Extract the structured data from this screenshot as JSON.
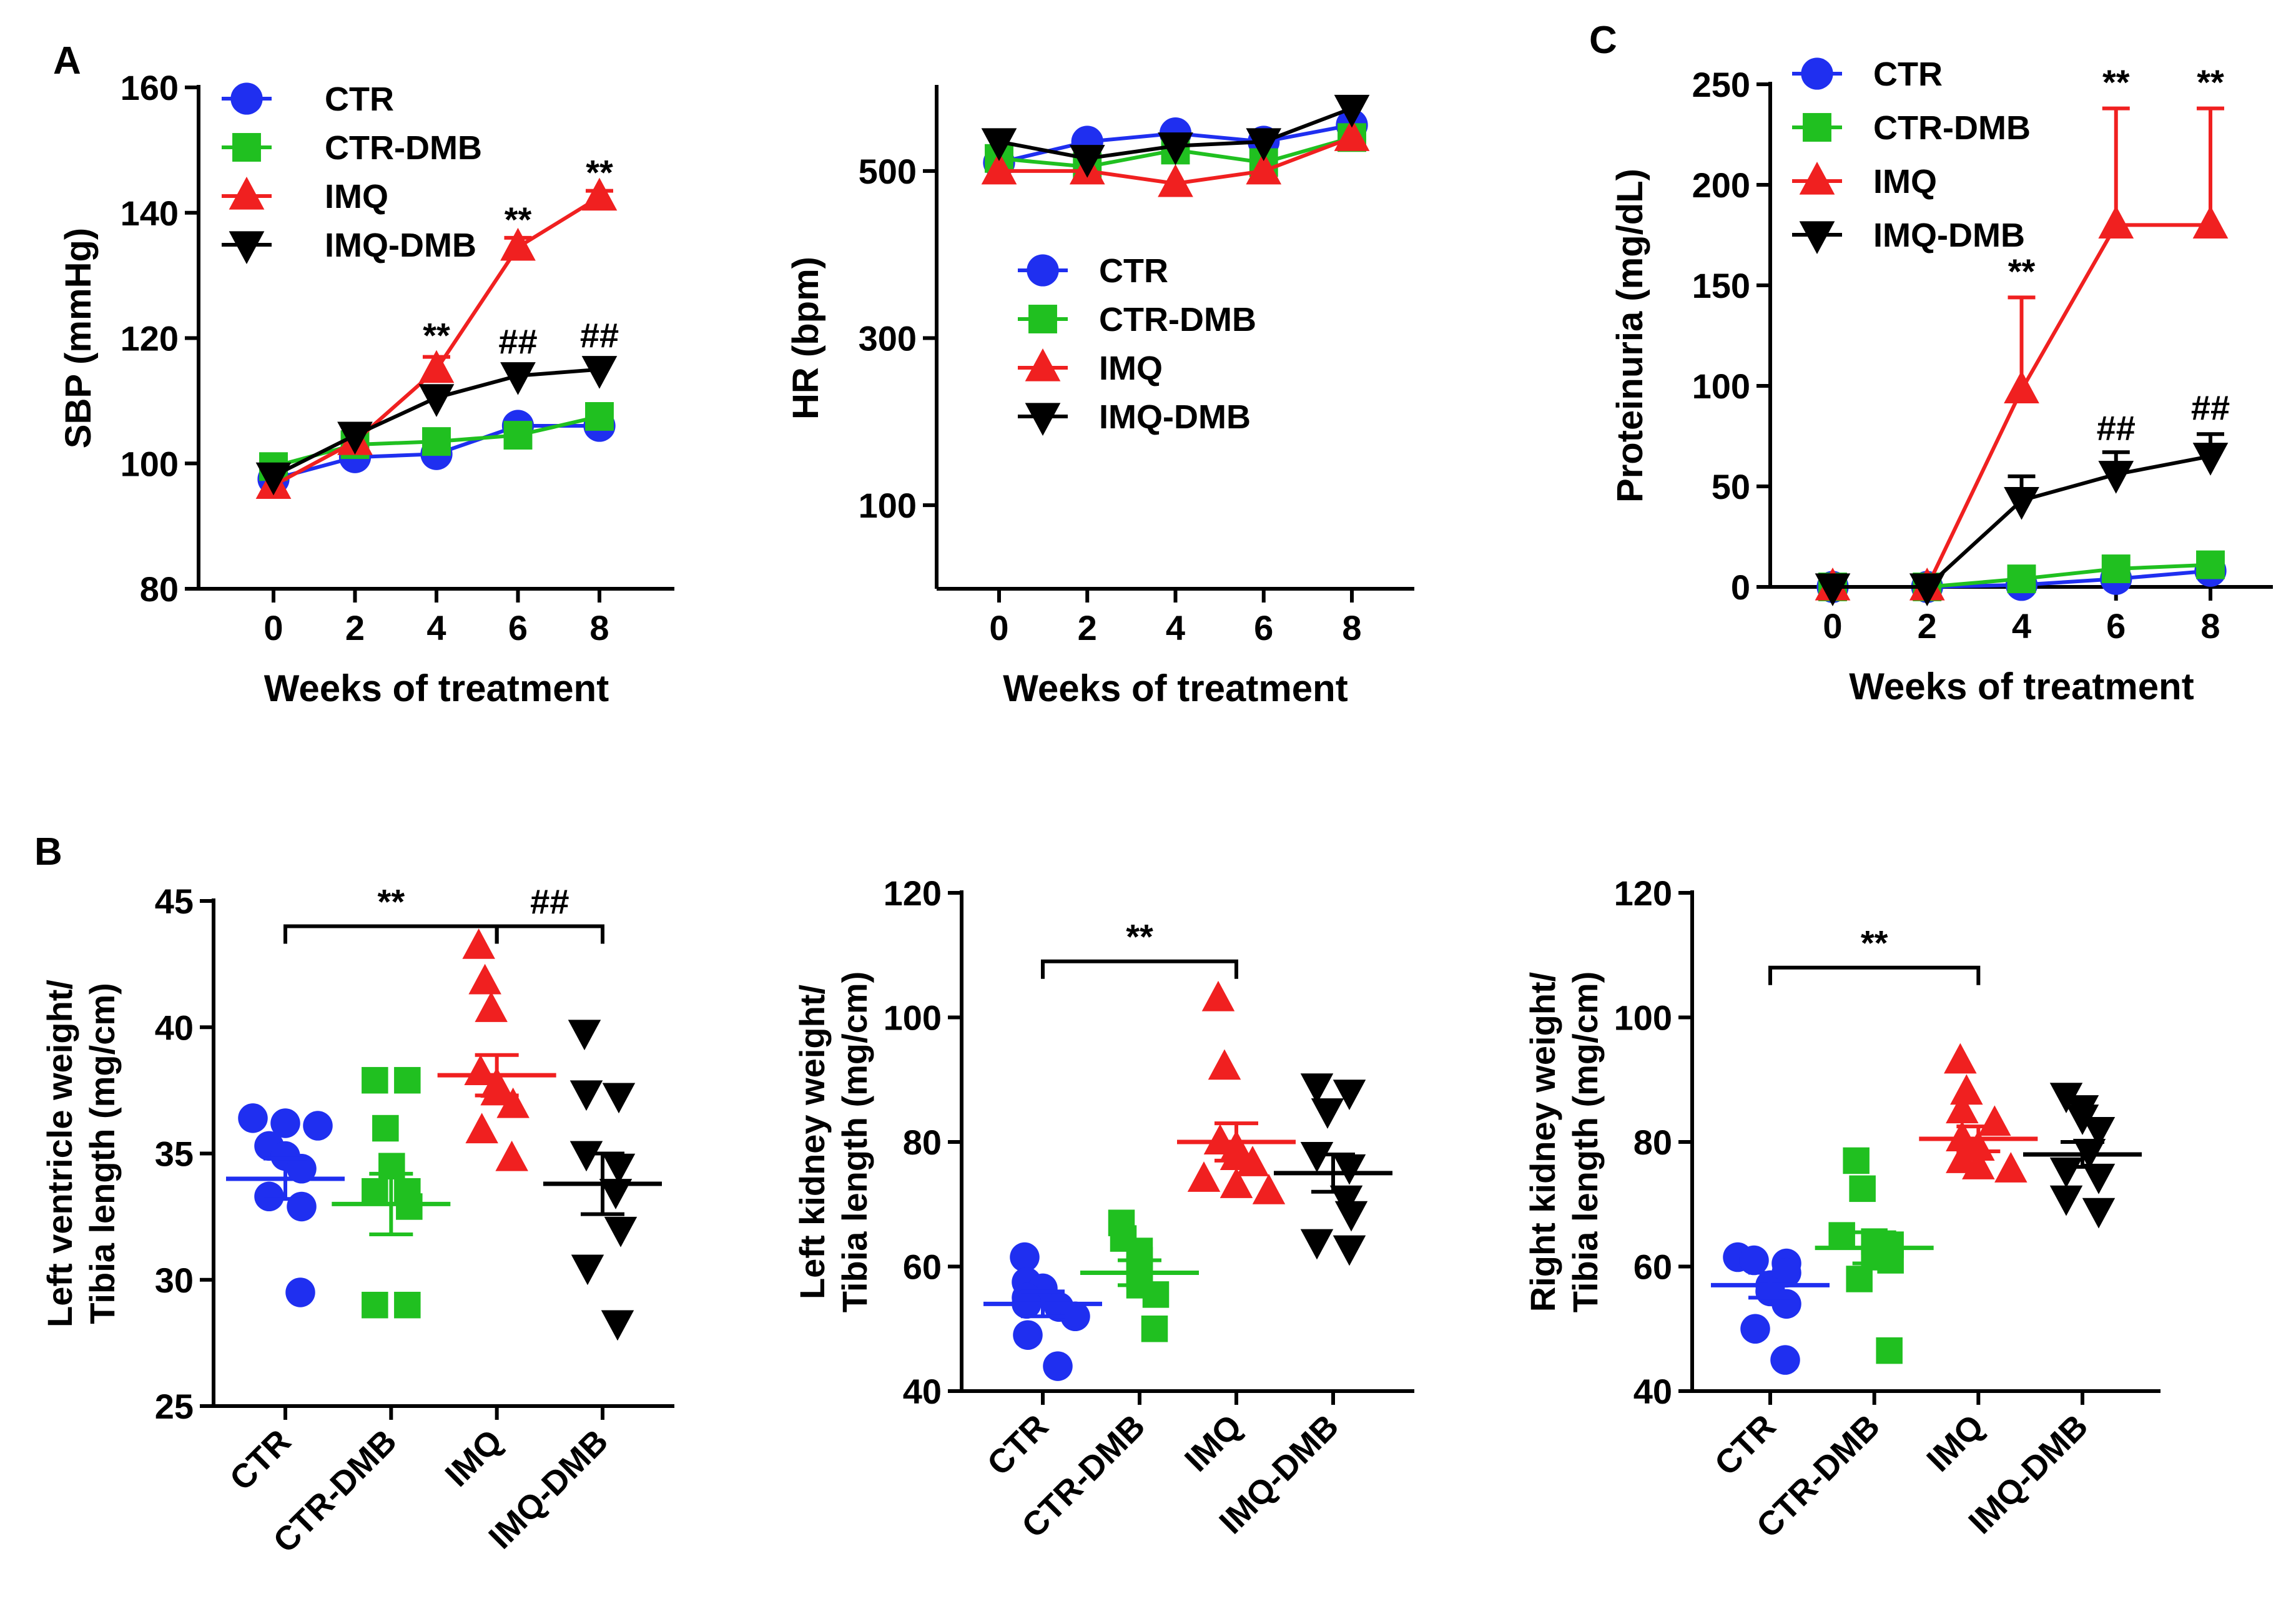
{
  "colors": {
    "CTR": "#1f2ff0",
    "CTR-DMB": "#20c020",
    "IMQ": "#f02020",
    "IMQ-DMB": "#000000"
  },
  "panel_labels": [
    "A",
    "B",
    "C"
  ],
  "chart_data": [
    {
      "id": "sbp",
      "type": "line",
      "title": "",
      "xlabel": "Weeks of treatment",
      "ylabel": "SBP (mmHg)",
      "x": [
        0,
        2,
        4,
        6,
        8
      ],
      "xticks": [
        "0",
        "2",
        "4",
        "6",
        "8"
      ],
      "ylim": [
        80,
        160
      ],
      "yticks": [
        80,
        100,
        120,
        140,
        160
      ],
      "legend": "top-left",
      "series": [
        {
          "name": "CTR",
          "marker": "circle",
          "values": [
            97.5,
            101,
            101.5,
            106,
            106
          ],
          "err": [
            0,
            0,
            0,
            0,
            0
          ]
        },
        {
          "name": "CTR-DMB",
          "marker": "square",
          "values": [
            99.5,
            103,
            103.5,
            104.5,
            107.5
          ],
          "err": [
            0,
            0,
            0,
            0,
            0
          ]
        },
        {
          "name": "IMQ",
          "marker": "triangle-up",
          "values": [
            96.5,
            103.5,
            115,
            134.5,
            142.5
          ],
          "err": [
            0,
            0,
            2,
            1.5,
            1
          ]
        },
        {
          "name": "IMQ-DMB",
          "marker": "triangle-down",
          "values": [
            98,
            104.5,
            110.5,
            114,
            115
          ],
          "err": [
            0,
            0,
            1.5,
            1.5,
            1.5
          ]
        }
      ],
      "annotations": [
        {
          "x": 4,
          "y": 118.5,
          "text": "**",
          "color": "IMQ"
        },
        {
          "x": 6,
          "y": 137,
          "text": "**",
          "color": "IMQ"
        },
        {
          "x": 8,
          "y": 144.5,
          "text": "**",
          "color": "IMQ"
        },
        {
          "x": 6,
          "y": 117.5,
          "text": "##",
          "color": "IMQ-DMB"
        },
        {
          "x": 8,
          "y": 118.5,
          "text": "##",
          "color": "IMQ-DMB"
        }
      ]
    },
    {
      "id": "hr",
      "type": "line",
      "title": "",
      "xlabel": "Weeks of treatment",
      "ylabel": "HR (bpm)",
      "x": [
        0,
        2,
        4,
        6,
        8
      ],
      "xticks": [
        "0",
        "2",
        "4",
        "6",
        "8"
      ],
      "ylim": [
        0,
        600
      ],
      "yticks": [
        100,
        300,
        500
      ],
      "legend": "center-right",
      "series": [
        {
          "name": "CTR",
          "marker": "circle",
          "values": [
            510,
            535,
            545,
            535,
            555
          ],
          "err": [
            0,
            0,
            0,
            0,
            0
          ]
        },
        {
          "name": "CTR-DMB",
          "marker": "square",
          "values": [
            515,
            505,
            525,
            510,
            540
          ],
          "err": [
            0,
            0,
            0,
            0,
            0
          ]
        },
        {
          "name": "IMQ",
          "marker": "triangle-up",
          "values": [
            500,
            500,
            485,
            500,
            540
          ],
          "err": [
            0,
            0,
            0,
            0,
            0
          ]
        },
        {
          "name": "IMQ-DMB",
          "marker": "triangle-down",
          "values": [
            535,
            515,
            530,
            535,
            575
          ],
          "err": [
            0,
            0,
            0,
            0,
            0
          ]
        }
      ],
      "annotations": []
    },
    {
      "id": "proteinuria",
      "type": "line",
      "title": "",
      "xlabel": "Weeks of treatment",
      "ylabel": "Proteinuria (mg/dL)",
      "x": [
        0,
        2,
        4,
        6,
        8
      ],
      "xticks": [
        "0",
        "2",
        "4",
        "6",
        "8"
      ],
      "ylim": [
        0,
        250
      ],
      "yticks": [
        0,
        50,
        100,
        150,
        200,
        250
      ],
      "legend": "top-left",
      "series": [
        {
          "name": "CTR",
          "marker": "circle",
          "values": [
            0,
            0,
            1,
            4,
            8
          ],
          "err": [
            0,
            0,
            0,
            0,
            0
          ]
        },
        {
          "name": "CTR-DMB",
          "marker": "square",
          "values": [
            0,
            0,
            4,
            9,
            11
          ],
          "err": [
            0,
            0,
            0,
            0,
            0
          ]
        },
        {
          "name": "IMQ",
          "marker": "triangle-up",
          "values": [
            0,
            0,
            98,
            180,
            180
          ],
          "err": [
            0,
            0,
            46,
            58,
            58
          ]
        },
        {
          "name": "IMQ-DMB",
          "marker": "triangle-down",
          "values": [
            0,
            0,
            43,
            56,
            65
          ],
          "err": [
            0,
            0,
            12,
            11,
            11
          ]
        }
      ],
      "annotations": [
        {
          "x": 4,
          "y": 151,
          "text": "**",
          "color": "IMQ-DMB"
        },
        {
          "x": 6,
          "y": 245,
          "text": "**",
          "color": "IMQ-DMB"
        },
        {
          "x": 8,
          "y": 245,
          "text": "**",
          "color": "IMQ-DMB"
        },
        {
          "x": 6,
          "y": 73,
          "text": "##",
          "color": "IMQ-DMB"
        },
        {
          "x": 8,
          "y": 83,
          "text": "##",
          "color": "IMQ-DMB"
        }
      ]
    },
    {
      "id": "lv",
      "type": "scatter",
      "title": "",
      "xlabel": "",
      "ylabel": "Left ventricle weight/ Tibia length (mg/cm)",
      "ylabel_lines": [
        "Left ventricle weight/",
        "Tibia length (mg/cm)"
      ],
      "categories": [
        "CTR",
        "CTR-DMB",
        "IMQ",
        "IMQ-DMB"
      ],
      "ylim": [
        25,
        45
      ],
      "yticks": [
        25,
        30,
        35,
        40,
        45
      ],
      "groups": [
        {
          "name": "CTR",
          "marker": "circle",
          "mean": 34.0,
          "sem": 0.8,
          "points": [
            36.4,
            36.2,
            36.1,
            35.3,
            34.9,
            34.4,
            33.3,
            32.9,
            29.5
          ]
        },
        {
          "name": "CTR-DMB",
          "marker": "square",
          "mean": 33.0,
          "sem": 1.2,
          "points": [
            37.9,
            37.9,
            36.0,
            34.5,
            33.5,
            33.5,
            32.9,
            29.0,
            29.0
          ]
        },
        {
          "name": "IMQ",
          "marker": "triangle-up",
          "mean": 38.1,
          "sem": 0.8,
          "points": [
            43.2,
            41.8,
            40.7,
            38.2,
            37.7,
            37.4,
            36.9,
            35.9,
            34.8
          ]
        },
        {
          "name": "IMQ-DMB",
          "marker": "triangle-down",
          "mean": 33.8,
          "sem": 1.2,
          "points": [
            39.8,
            37.4,
            37.3,
            35.0,
            34.5,
            33.5,
            32.0,
            30.5,
            28.3
          ]
        }
      ],
      "brackets": [
        {
          "from": 0,
          "to": 2,
          "y": 44.0,
          "text": "**"
        },
        {
          "from": 2,
          "to": 3,
          "y": 44.0,
          "text": "##"
        }
      ]
    },
    {
      "id": "lk",
      "type": "scatter",
      "title": "",
      "xlabel": "",
      "ylabel": "Left kidney weight/ Tibia length (mg/cm)",
      "ylabel_lines": [
        "Left kidney weight/",
        "Tibia length (mg/cm)"
      ],
      "categories": [
        "CTR",
        "CTR-DMB",
        "IMQ",
        "IMQ-DMB"
      ],
      "ylim": [
        40,
        120
      ],
      "yticks": [
        40,
        60,
        80,
        100,
        120
      ],
      "groups": [
        {
          "name": "CTR",
          "marker": "circle",
          "mean": 54.0,
          "sem": 2.0,
          "points": [
            61.5,
            57.5,
            56.5,
            55.0,
            54.0,
            53.5,
            52.0,
            49.0,
            44.0
          ]
        },
        {
          "name": "CTR-DMB",
          "marker": "square",
          "mean": 59.0,
          "sem": 2.0,
          "points": [
            67.0,
            64.5,
            62.5,
            61.0,
            59.5,
            58.5,
            57.0,
            55.5,
            50.0
          ]
        },
        {
          "name": "IMQ",
          "marker": "triangle-up",
          "mean": 80.0,
          "sem": 3.0,
          "points": [
            103.0,
            92.0,
            80.0,
            79.0,
            77.5,
            76.5,
            74.0,
            73.0,
            72.0
          ]
        },
        {
          "name": "IMQ-DMB",
          "marker": "triangle-down",
          "mean": 75.0,
          "sem": 3.0,
          "points": [
            89.0,
            88.0,
            85.0,
            78.0,
            76.0,
            71.0,
            68.5,
            64.0,
            63.0
          ]
        }
      ],
      "brackets": [
        {
          "from": 0,
          "to": 2,
          "y": 109.0,
          "text": "**"
        }
      ]
    },
    {
      "id": "rk",
      "type": "scatter",
      "title": "",
      "xlabel": "",
      "ylabel": "Right kidney weight/ Tibia length (mg/cm)",
      "ylabel_lines": [
        "Right kidney weight/",
        "Tibia length (mg/cm)"
      ],
      "categories": [
        "CTR",
        "CTR-DMB",
        "IMQ",
        "IMQ-DMB"
      ],
      "ylim": [
        40,
        120
      ],
      "yticks": [
        40,
        60,
        80,
        100,
        120
      ],
      "groups": [
        {
          "name": "CTR",
          "marker": "circle",
          "mean": 57.0,
          "sem": 2.0,
          "points": [
            61.5,
            61.0,
            60.5,
            59.0,
            57.0,
            56.0,
            54.0,
            50.0,
            45.0
          ]
        },
        {
          "name": "CTR-DMB",
          "marker": "square",
          "mean": 63.0,
          "sem": 2.5,
          "points": [
            77.0,
            72.5,
            65.0,
            64.0,
            63.5,
            61.5,
            61.0,
            58.0,
            46.5
          ]
        },
        {
          "name": "IMQ",
          "marker": "triangle-up",
          "mean": 80.5,
          "sem": 2.0,
          "points": [
            93.0,
            88.0,
            85.0,
            83.0,
            80.5,
            79.0,
            77.0,
            76.0,
            75.5
          ]
        },
        {
          "name": "IMQ-DMB",
          "marker": "triangle-down",
          "mean": 78.0,
          "sem": 2.0,
          "points": [
            87.5,
            85.5,
            84.0,
            82.0,
            78.5,
            75.5,
            74.5,
            71.0,
            69.0
          ]
        }
      ],
      "brackets": [
        {
          "from": 0,
          "to": 2,
          "y": 108.0,
          "text": "**"
        }
      ]
    }
  ]
}
